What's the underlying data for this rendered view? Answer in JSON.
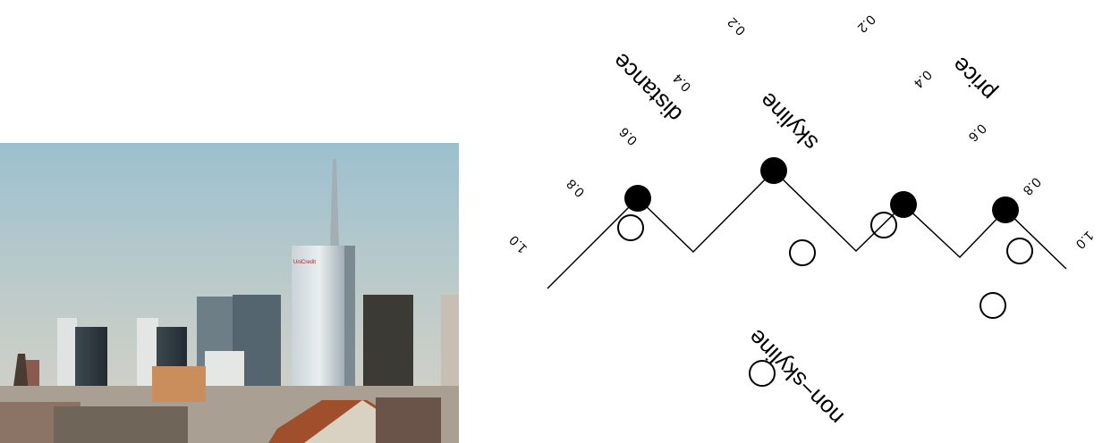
{
  "photo": {
    "description_icon": "city-skyline-photo",
    "sign_text": "UniCredit"
  },
  "diagram": {
    "legend": {
      "skyline": "skyline",
      "non_skyline": "non−skyline"
    },
    "axes": {
      "distance": "distance",
      "price": "price"
    },
    "ticks_left": [
      "1.0",
      "0.8",
      "0.6",
      "0.4",
      "0.2"
    ],
    "ticks_right": [
      "0.2",
      "0.4",
      "0.6",
      "0.8",
      "1.0"
    ]
  }
}
